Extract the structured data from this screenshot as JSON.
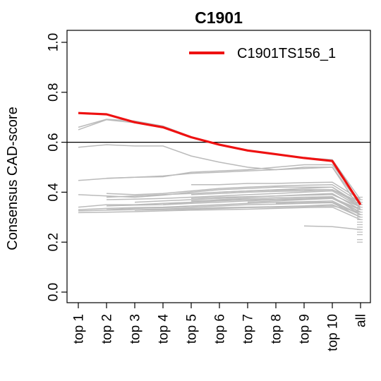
{
  "chart_data": {
    "type": "line",
    "title": "C1901",
    "xlabel": "",
    "ylabel": "Consensus CAD-score",
    "categories": [
      "top 1",
      "top 2",
      "top 3",
      "top 4",
      "top 5",
      "top 6",
      "top 7",
      "top 8",
      "top 9",
      "top 10",
      "all"
    ],
    "yticks": [
      "0.0",
      "0.2",
      "0.4",
      "0.6",
      "0.8",
      "1.0"
    ],
    "ylim": [
      0,
      1
    ],
    "reference_line": 0.6,
    "legend": {
      "position": "top-right",
      "entries": [
        {
          "label": "C1901TS156_1",
          "color": "#ee1111"
        }
      ]
    },
    "highlight": {
      "name": "C1901TS156_1",
      "color": "#ee1111",
      "values": [
        0.717,
        0.712,
        0.68,
        0.66,
        0.62,
        0.59,
        0.567,
        0.552,
        0.537,
        0.525,
        0.35
      ]
    },
    "background_color": "#bbbbbb",
    "background_series": [
      [
        0.66,
        0.692,
        0.685,
        0.665,
        0.622,
        0.592,
        0.568,
        0.553,
        0.538,
        0.53,
        0.37
      ],
      [
        0.65,
        0.69,
        0.678,
        0.66,
        null,
        null,
        null,
        null,
        null,
        null,
        null
      ],
      [
        0.58,
        0.59,
        0.585,
        0.585,
        0.545,
        0.52,
        0.5,
        0.49,
        0.5,
        0.5,
        0.33
      ],
      [
        0.447,
        0.455,
        0.46,
        0.465,
        0.475,
        0.48,
        0.485,
        0.49,
        0.495,
        0.5,
        0.35
      ],
      [
        null,
        0.456,
        0.46,
        0.462,
        0.48,
        0.485,
        0.49,
        0.5,
        0.51,
        0.51,
        0.36
      ],
      [
        0.39,
        0.385,
        0.38,
        0.388,
        0.4,
        0.41,
        0.415,
        0.42,
        0.42,
        0.42,
        0.34
      ],
      [
        null,
        0.395,
        0.39,
        0.395,
        0.405,
        0.415,
        0.42,
        0.425,
        0.428,
        0.43,
        0.36
      ],
      [
        null,
        null,
        null,
        null,
        0.43,
        0.43,
        0.435,
        0.435,
        0.438,
        0.44,
        0.37
      ],
      [
        null,
        0.38,
        0.385,
        0.39,
        0.395,
        0.4,
        0.405,
        0.408,
        0.41,
        0.41,
        0.35
      ],
      [
        null,
        0.37,
        0.372,
        0.375,
        0.38,
        0.385,
        0.39,
        0.395,
        0.4,
        0.405,
        0.34
      ],
      [
        null,
        null,
        0.36,
        0.365,
        0.37,
        0.375,
        0.38,
        0.385,
        0.39,
        0.395,
        0.33
      ],
      [
        0.34,
        0.35,
        0.35,
        0.355,
        0.36,
        0.365,
        0.37,
        0.372,
        0.375,
        0.38,
        0.32
      ],
      [
        null,
        0.345,
        0.348,
        0.35,
        0.355,
        0.36,
        0.365,
        0.37,
        0.372,
        0.375,
        0.33
      ],
      [
        null,
        null,
        null,
        0.35,
        0.36,
        0.37,
        0.375,
        0.378,
        0.38,
        0.382,
        0.31
      ],
      [
        0.33,
        0.335,
        0.338,
        0.34,
        0.345,
        0.35,
        0.355,
        0.36,
        0.362,
        0.365,
        0.31
      ],
      [
        null,
        0.33,
        0.335,
        0.338,
        0.34,
        0.345,
        0.35,
        0.352,
        0.355,
        0.358,
        0.3
      ],
      [
        0.325,
        0.328,
        0.33,
        0.333,
        0.335,
        0.338,
        0.34,
        0.342,
        0.345,
        0.35,
        0.3
      ],
      [
        0.318,
        0.32,
        0.322,
        0.325,
        0.328,
        0.33,
        0.332,
        0.335,
        0.338,
        0.34,
        0.29
      ],
      [
        null,
        null,
        0.328,
        0.33,
        0.332,
        0.335,
        0.338,
        0.34,
        0.343,
        0.345,
        0.32
      ],
      [
        null,
        null,
        null,
        null,
        0.39,
        0.395,
        0.4,
        0.403,
        0.405,
        0.41,
        0.36
      ],
      [
        null,
        null,
        null,
        null,
        0.375,
        0.38,
        0.382,
        0.385,
        0.388,
        0.39,
        0.34
      ],
      [
        null,
        null,
        null,
        null,
        0.365,
        0.368,
        0.37,
        0.372,
        0.375,
        0.378,
        0.33
      ],
      [
        null,
        null,
        null,
        null,
        null,
        0.4,
        0.405,
        0.41,
        0.415,
        0.42,
        0.35
      ],
      [
        null,
        null,
        null,
        null,
        null,
        null,
        0.36,
        0.365,
        0.37,
        0.375,
        0.32
      ],
      [
        null,
        null,
        null,
        null,
        null,
        null,
        null,
        0.355,
        0.36,
        0.36,
        0.31
      ],
      [
        null,
        null,
        null,
        null,
        null,
        null,
        null,
        null,
        0.265,
        0.262,
        0.25
      ]
    ],
    "all_extra_points": [
      0.2,
      0.21,
      0.23,
      0.24,
      0.25,
      0.26,
      0.27,
      0.28,
      0.29,
      0.3,
      0.31,
      0.32,
      0.33,
      0.34,
      0.35,
      0.36,
      0.37,
      0.38
    ]
  }
}
